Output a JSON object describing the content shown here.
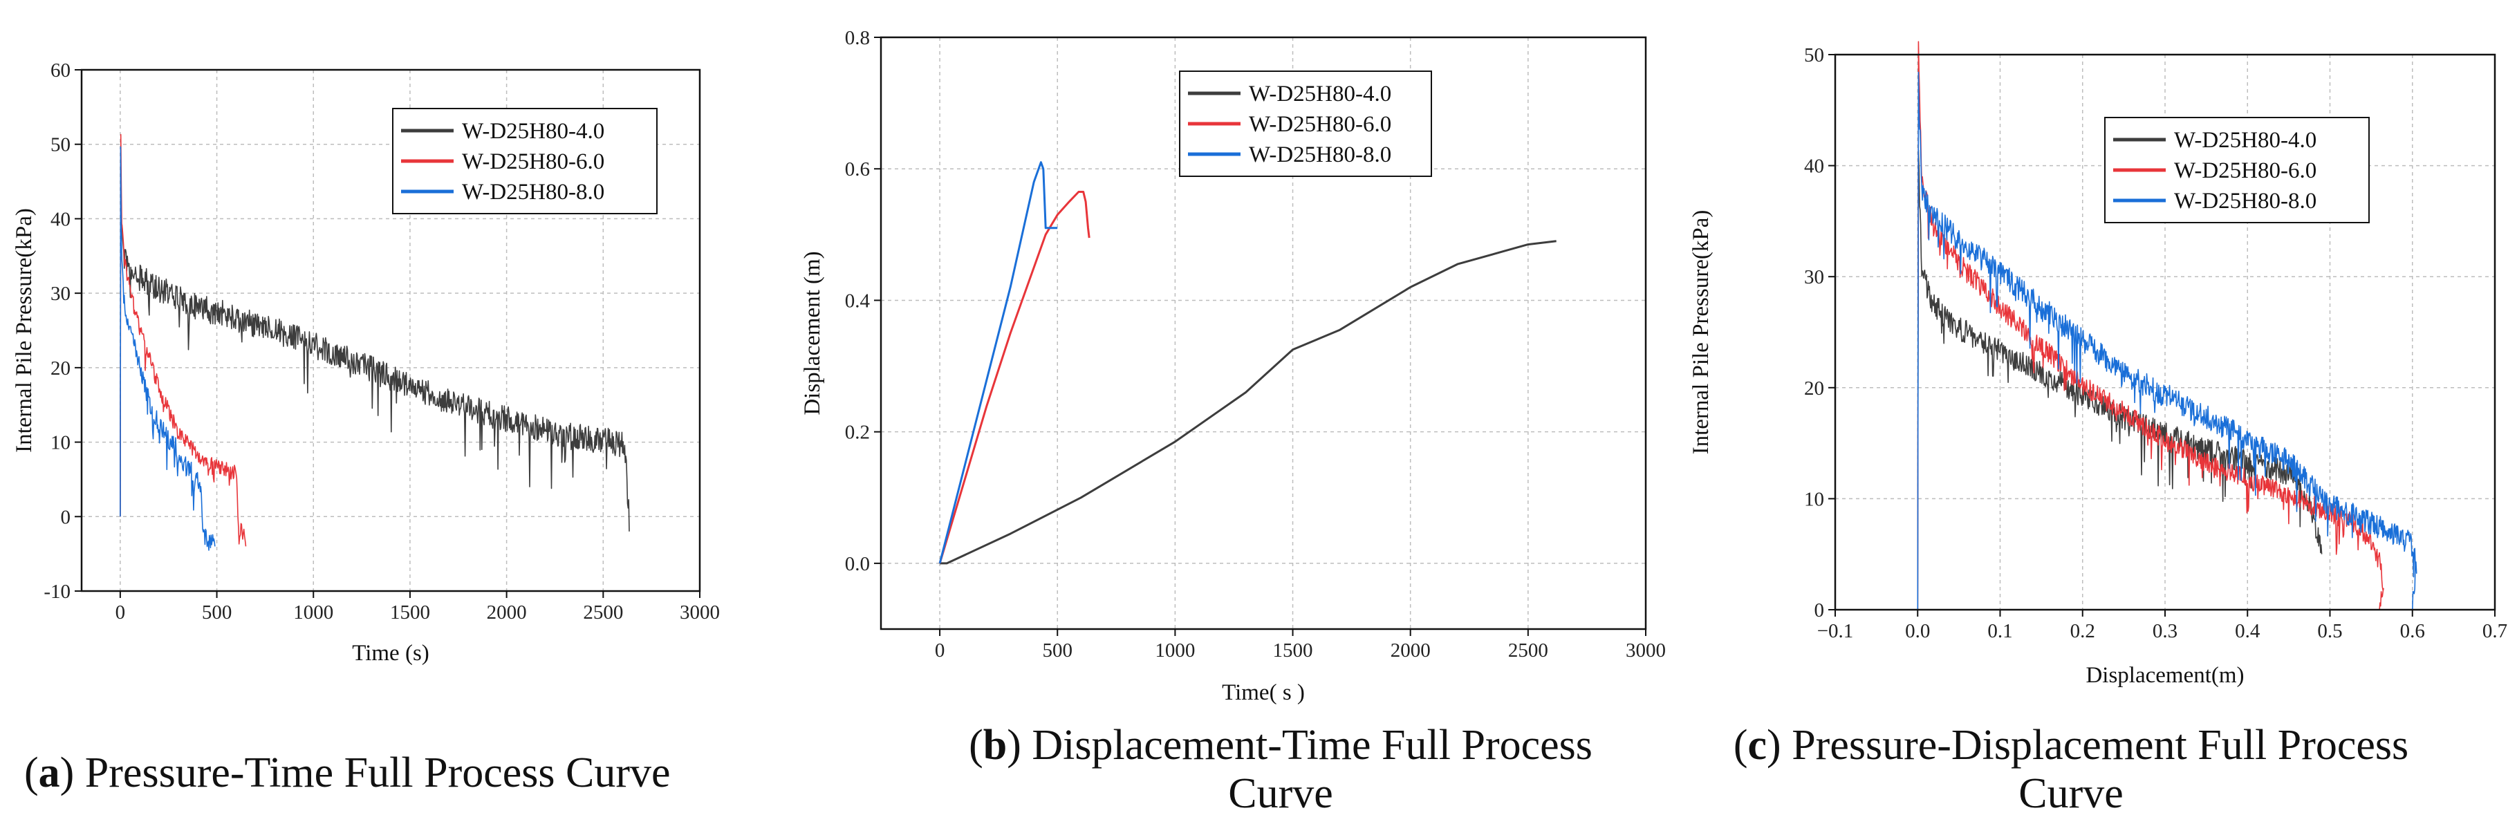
{
  "chart_data": [
    {
      "type": "line",
      "panel_label": "a",
      "caption": [
        ") Pressure-Time Full Process Curve"
      ],
      "title": "",
      "xlabel": "Time (s)",
      "ylabel": "Internal Pile Pressure(kPa)",
      "xlim": [
        -200,
        3000
      ],
      "ylim": [
        -10,
        60
      ],
      "xticks": [
        "0",
        "500",
        "1000",
        "1500",
        "2000",
        "2500",
        "3000"
      ],
      "yticks": [
        "-10",
        "0",
        "10",
        "20",
        "30",
        "40",
        "50",
        "60"
      ],
      "legend": {
        "placement": "top-right"
      },
      "series": [
        {
          "name": "W-D25H80-4.0",
          "color": "#3d3d3d",
          "noise": 7,
          "x": [
            0,
            2,
            6,
            15,
            40,
            100,
            200,
            300,
            400,
            500,
            600,
            800,
            1000,
            1200,
            1400,
            1600,
            1800,
            2000,
            2200,
            2250,
            2400,
            2550,
            2600,
            2620,
            2635
          ],
          "y": [
            0,
            45,
            38,
            35,
            33,
            31.5,
            30,
            29,
            27.5,
            27,
            26,
            24.5,
            22.5,
            20.5,
            18,
            16,
            14,
            12.5,
            11,
            10.5,
            10,
            9.5,
            9,
            8,
            -2
          ]
        },
        {
          "name": "W-D25H80-6.0",
          "color": "#e8353a",
          "noise": 4,
          "x": [
            0,
            3,
            8,
            20,
            50,
            100,
            150,
            200,
            250,
            300,
            350,
            400,
            450,
            500,
            550,
            600,
            615,
            625,
            640,
            650
          ],
          "y": [
            0,
            50,
            40,
            34,
            30,
            25,
            21,
            17,
            14,
            11,
            9.5,
            8,
            7,
            6.5,
            6,
            5.5,
            -3,
            -2,
            -3,
            -4
          ]
        },
        {
          "name": "W-D25H80-8.0",
          "color": "#1a6fd8",
          "noise": 5,
          "x": [
            0,
            2,
            5,
            15,
            30,
            60,
            100,
            150,
            200,
            250,
            290,
            300,
            350,
            400,
            420,
            430,
            450,
            470,
            490
          ],
          "y": [
            0,
            48,
            38,
            30,
            27,
            24,
            20,
            15,
            12,
            10,
            9,
            8,
            6,
            5,
            3,
            -3,
            -3.5,
            -3.8,
            -4
          ]
        }
      ]
    },
    {
      "type": "line",
      "panel_label": "b",
      "caption": [
        ") Displacement-Time Full Process",
        "Curve"
      ],
      "title": "",
      "xlabel": "Time( s )",
      "ylabel": "Displacement (m)",
      "xlim": [
        -250,
        3000
      ],
      "ylim": [
        -0.1,
        0.8
      ],
      "xticks": [
        "0",
        "500",
        "1000",
        "1500",
        "2000",
        "2500",
        "3000"
      ],
      "yticks": [
        "0.0",
        "0.2",
        "0.4",
        "0.6",
        "0.8"
      ],
      "legend": {
        "placement": "top-center"
      },
      "series": [
        {
          "name": "W-D25H80-4.0",
          "color": "#3d3d3d",
          "noise": 0,
          "x": [
            0,
            30,
            300,
            600,
            1000,
            1300,
            1500,
            1700,
            2000,
            2200,
            2400,
            2500,
            2620
          ],
          "y": [
            0,
            0,
            0.045,
            0.1,
            0.185,
            0.26,
            0.325,
            0.355,
            0.42,
            0.455,
            0.475,
            0.485,
            0.49
          ]
        },
        {
          "name": "W-D25H80-6.0",
          "color": "#e8353a",
          "noise": 0,
          "x": [
            0,
            100,
            200,
            300,
            400,
            450,
            500,
            550,
            590,
            610,
            620,
            630,
            635
          ],
          "y": [
            0,
            0.12,
            0.24,
            0.35,
            0.45,
            0.5,
            0.53,
            0.55,
            0.565,
            0.565,
            0.55,
            0.51,
            0.495
          ]
        },
        {
          "name": "W-D25H80-8.0",
          "color": "#1a6fd8",
          "noise": 0,
          "x": [
            0,
            100,
            200,
            300,
            400,
            430,
            440,
            450,
            470,
            500
          ],
          "y": [
            0,
            0.14,
            0.28,
            0.42,
            0.58,
            0.61,
            0.6,
            0.51,
            0.51,
            0.51
          ]
        }
      ]
    },
    {
      "type": "line",
      "panel_label": "c",
      "caption": [
        ") Pressure-Displacement Full Process",
        "Curve"
      ],
      "title": "",
      "xlabel": "Displacement(m)",
      "ylabel": "Internal Pile Pressure(kPa)",
      "xlim": [
        -0.1,
        0.7
      ],
      "ylim": [
        0,
        50
      ],
      "xticks": [
        "−0.1",
        "0.0",
        "0.1",
        "0.2",
        "0.3",
        "0.4",
        "0.5",
        "0.6",
        "0.7"
      ],
      "yticks": [
        "0",
        "10",
        "20",
        "30",
        "40",
        "50"
      ],
      "legend": {
        "placement": "top-right"
      },
      "series": [
        {
          "name": "W-D25H80-4.0",
          "color": "#3d3d3d",
          "noise": 6,
          "x": [
            0,
            0.001,
            0.005,
            0.02,
            0.05,
            0.1,
            0.15,
            0.2,
            0.25,
            0.3,
            0.35,
            0.4,
            0.45,
            0.47,
            0.48,
            0.49
          ],
          "y": [
            0,
            40,
            30,
            27,
            25,
            23,
            21,
            19,
            17,
            15.5,
            14,
            13,
            12,
            10,
            8,
            5
          ]
        },
        {
          "name": "W-D25H80-6.0",
          "color": "#e8353a",
          "noise": 5,
          "x": [
            0,
            0.001,
            0.005,
            0.02,
            0.05,
            0.1,
            0.15,
            0.2,
            0.25,
            0.3,
            0.35,
            0.4,
            0.45,
            0.5,
            0.53,
            0.55,
            0.56,
            0.565,
            0.56
          ],
          "y": [
            0,
            50,
            38,
            34,
            31,
            27,
            23.5,
            20,
            17.5,
            15,
            13,
            11.5,
            10,
            8.5,
            7.5,
            6,
            4,
            2,
            0
          ]
        },
        {
          "name": "W-D25H80-8.0",
          "color": "#1a6fd8",
          "noise": 6,
          "x": [
            0,
            0.001,
            0.005,
            0.02,
            0.05,
            0.1,
            0.15,
            0.2,
            0.25,
            0.3,
            0.35,
            0.4,
            0.45,
            0.5,
            0.55,
            0.58,
            0.6,
            0.605,
            0.6
          ],
          "y": [
            0,
            47,
            37,
            35,
            33,
            30,
            27,
            24,
            21,
            19,
            17,
            15,
            13,
            9,
            7.5,
            6.5,
            5.5,
            4,
            0
          ]
        }
      ]
    }
  ]
}
